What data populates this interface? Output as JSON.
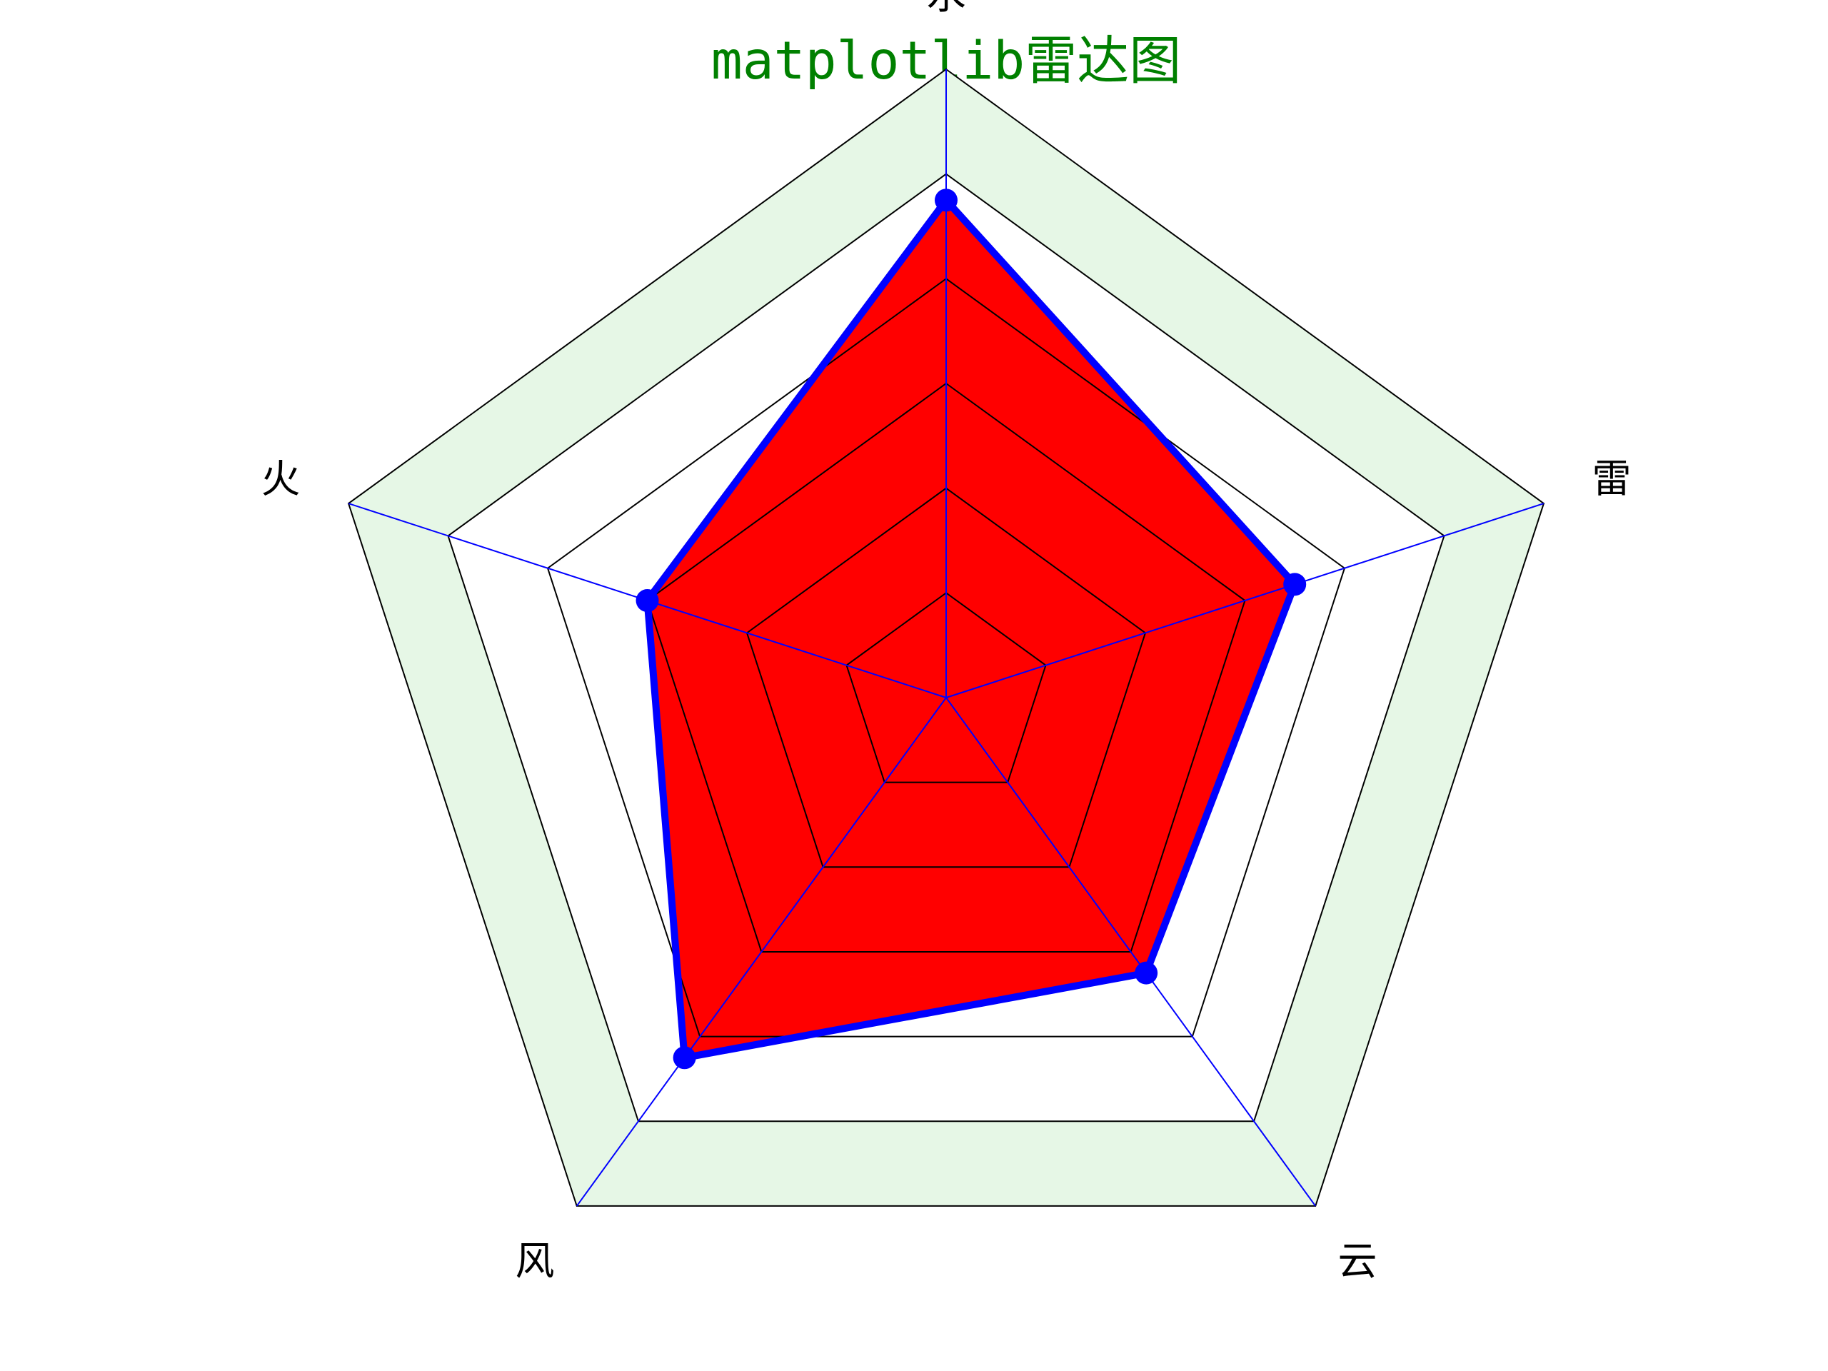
{
  "chart_data": {
    "type": "radar",
    "title": "matplotlib雷达图",
    "categories": [
      "水",
      "雷",
      "云",
      "风",
      "火"
    ],
    "series": [
      {
        "values": [
          95,
          70,
          65,
          85,
          60
        ]
      }
    ],
    "rlim": [
      0,
      120
    ],
    "grid_rings": [
      20,
      40,
      60,
      80,
      100,
      120
    ],
    "colors": {
      "title": "#008000",
      "fill": "#ff0000",
      "line": "#0000ff",
      "marker": "#0000ff",
      "outer_band": "#e6f7e6",
      "ring": "#000000",
      "spoke": "#0000ff"
    }
  }
}
